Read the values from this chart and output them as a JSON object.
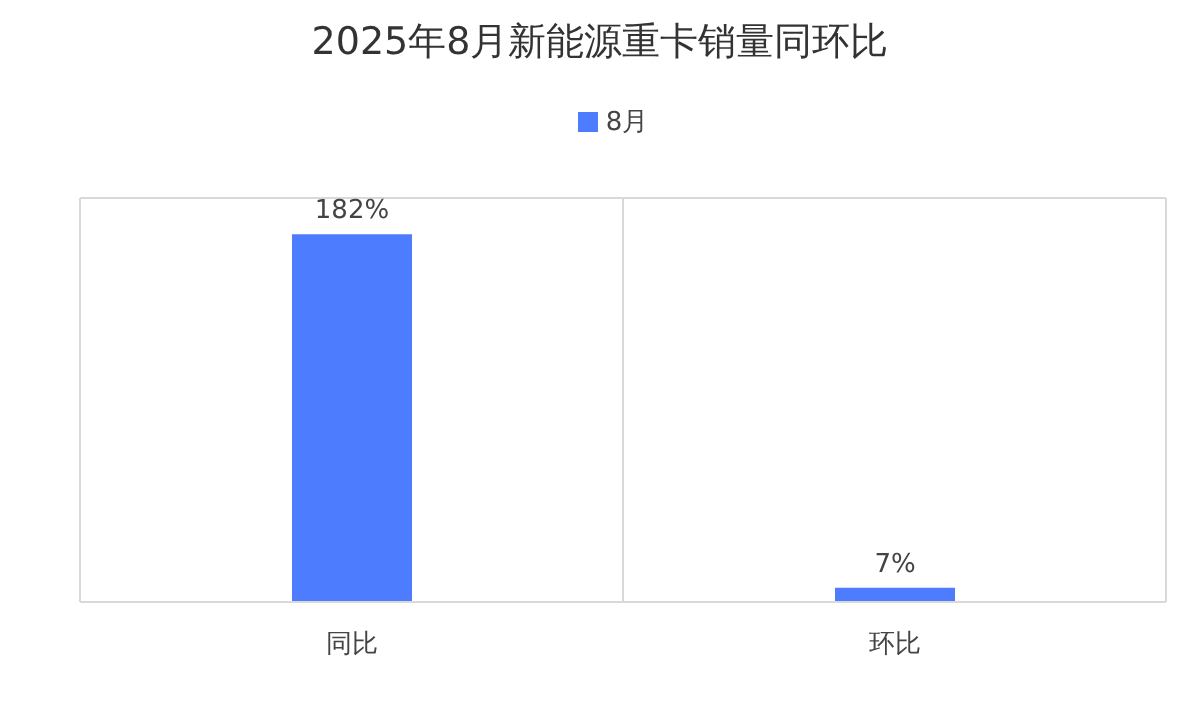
{
  "chart_data": {
    "type": "bar",
    "title": "2025年8月新能源重卡销量同环比",
    "categories": [
      "同比",
      "环比"
    ],
    "series": [
      {
        "name": "8月",
        "color": "#4e7cff",
        "values": [
          182,
          7
        ],
        "value_labels": [
          "182%",
          "7%"
        ]
      }
    ],
    "ylim": [
      0,
      200
    ],
    "tick_labels": "x",
    "grid": true,
    "legend": "top"
  }
}
